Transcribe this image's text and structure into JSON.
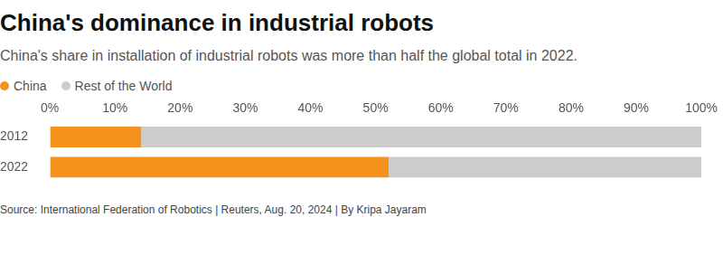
{
  "chart_data": {
    "type": "bar",
    "orientation": "horizontal",
    "stacked": true,
    "title": "China's dominance in industrial robots",
    "subtitle": "China's share in installation of industrial robots was more than half the global total in 2022.",
    "source": "Source: International Federation of Robotics | Reuters, Aug. 20, 2024 | By Kripa Jayaram",
    "categories": [
      "2012",
      "2022"
    ],
    "series": [
      {
        "name": "China",
        "color": "#f5921e",
        "values": [
          14,
          52
        ]
      },
      {
        "name": "Rest of the World",
        "color": "#cccccc",
        "values": [
          86,
          48
        ]
      }
    ],
    "xlim": [
      0,
      100
    ],
    "xticks": [
      {
        "value": 0,
        "label": "0%"
      },
      {
        "value": 10,
        "label": "10%"
      },
      {
        "value": 20,
        "label": "20%"
      },
      {
        "value": 30,
        "label": "30%"
      },
      {
        "value": 40,
        "label": "40%"
      },
      {
        "value": 50,
        "label": "50%"
      },
      {
        "value": 60,
        "label": "60%"
      },
      {
        "value": 70,
        "label": "70%"
      },
      {
        "value": 80,
        "label": "80%"
      },
      {
        "value": 90,
        "label": "90%"
      },
      {
        "value": 100,
        "label": "100%"
      }
    ],
    "grid": true,
    "legend": "top-left"
  }
}
